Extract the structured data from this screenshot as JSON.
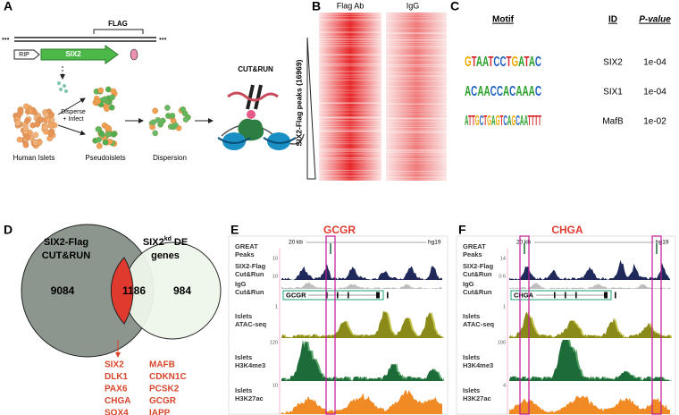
{
  "panels": {
    "a": {
      "label": "A",
      "construct": {
        "flag": "FLAG",
        "rip": "RIP",
        "six2": "SIX2"
      },
      "steps": {
        "disperse": [
          "Disperse",
          "+ Infect"
        ],
        "islets": "Human Islets",
        "pseudoislets": "Pseudoislets",
        "dispersion": "Dispersion",
        "cutrun": "CUT&RUN"
      }
    },
    "b": {
      "label": "B",
      "columns": [
        "Flag Ab",
        "IgG"
      ],
      "y_label": "SIX2-Flag peaks (16969)"
    },
    "c": {
      "label": "C",
      "headers": [
        "Motif",
        "ID",
        "P-value"
      ],
      "rows": [
        {
          "motif": "GTAATCCTGATAC",
          "id": "SIX2",
          "p": "1e-04"
        },
        {
          "motif": "ACAACCACAAAC",
          "id": "SIX1",
          "p": "1e-04"
        },
        {
          "motif": "ATTGCTGAGTCAGCAATTTT",
          "id": "MafB",
          "p": "1e-02"
        }
      ]
    },
    "d": {
      "label": "D",
      "left_title": [
        "SIX2-Flag",
        "CUT&RUN"
      ],
      "right_title": [
        "SIX2",
        "kd",
        "DE",
        "genes"
      ],
      "counts": {
        "left": 9084,
        "overlap": 1186,
        "right": 984
      },
      "genes": [
        [
          "SIX2",
          "MAFB"
        ],
        [
          "DLK1",
          "CDKN1C"
        ],
        [
          "PAX6",
          "PCSK2"
        ],
        [
          "CHGA",
          "GCGR"
        ],
        [
          "SOX4",
          "IAPP"
        ]
      ]
    },
    "e": {
      "label": "E",
      "gene": "GCGR",
      "scale": "20 kb",
      "genome": "hg19",
      "tracks": [
        {
          "name": [
            "GREAT",
            "Peaks"
          ]
        },
        {
          "name": [
            "SIX2-Flag",
            "Cut&Run"
          ],
          "max": "10"
        },
        {
          "name": [
            "IgG",
            "Cut&Run"
          ],
          "max": "10"
        },
        {
          "name": [
            "Islets",
            "ATAC-seq"
          ],
          "max": "1"
        },
        {
          "name": [
            "Islets",
            "H3K4me3"
          ],
          "max": "120"
        },
        {
          "name": [
            "Islets",
            "H3K27ac"
          ],
          "max": "10"
        }
      ]
    },
    "f": {
      "label": "F",
      "gene": "CHGA",
      "scale": "20 kb",
      "genome": "hg19",
      "tracks": [
        {
          "name": [
            "GREAT",
            "Peaks"
          ]
        },
        {
          "name": [
            "SIX2-Flag",
            "Cut&Run"
          ],
          "max": "14"
        },
        {
          "name": [
            "IgG",
            "Cut&Run"
          ],
          "max": "0.6"
        },
        {
          "name": [
            "Islets",
            "ATAC-seq"
          ],
          "max": "1"
        },
        {
          "name": [
            "Islets",
            "H3K4me3"
          ],
          "max": "100"
        },
        {
          "name": [
            "Islets",
            "H3K27ac"
          ],
          "max": "4"
        }
      ]
    }
  }
}
